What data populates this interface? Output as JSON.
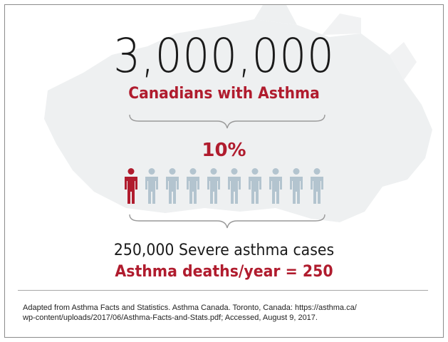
{
  "headline": {
    "number": "3,000,000",
    "subtitle": "Canadians with Asthma"
  },
  "severe_group": {
    "percent_label": "10%",
    "icons_total": 10,
    "icons_highlighted": 1
  },
  "stats": {
    "severe_cases": "250,000 Severe asthma cases",
    "deaths": "Asthma deaths/year = 250"
  },
  "citation": {
    "line1": "Adapted from Asthma Facts and Statistics.  Asthma Canada. Toronto, Canada: https://asthma.ca/",
    "line2": "wp-content/uploads/2017/06/Asthma-Facts-and-Stats.pdf; Accessed, August 9, 2017."
  },
  "colors": {
    "accent_red": "#b01c2e",
    "person_gray": "#b3c4cf",
    "map_gray": "#eef0f1"
  },
  "icons": {
    "person": "person-icon",
    "brace": "curly-brace"
  }
}
